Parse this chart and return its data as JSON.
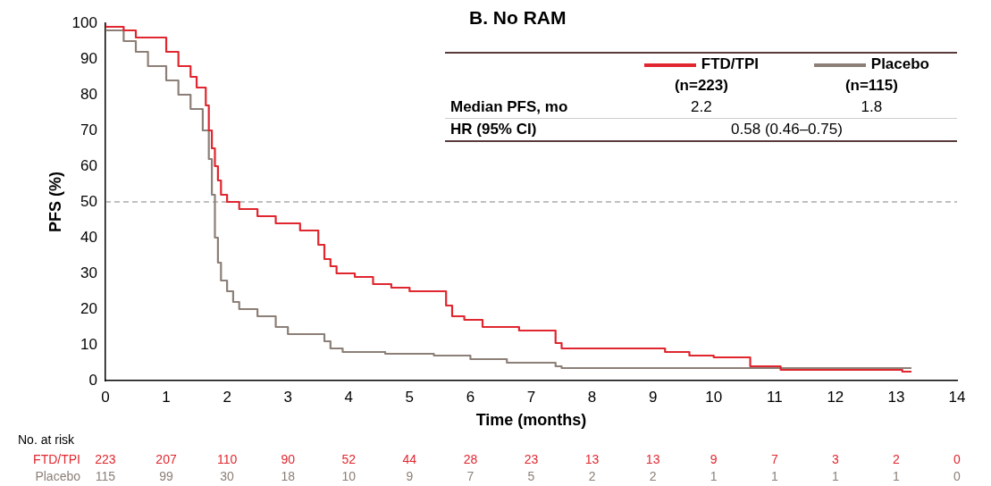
{
  "chart_data": {
    "type": "step",
    "title": "B. No RAM",
    "xlabel": "Time (months)",
    "ylabel": "PFS (%)",
    "xlim": [
      0,
      14
    ],
    "xticks": [
      0,
      1,
      2,
      3,
      4,
      5,
      6,
      7,
      8,
      9,
      10,
      11,
      12,
      13,
      14
    ],
    "ylim": [
      0,
      100
    ],
    "yticks": [
      0,
      10,
      20,
      30,
      40,
      50,
      60,
      70,
      80,
      90,
      100
    ],
    "grid": false,
    "legend": "top right",
    "marker": "none",
    "line_style": "solid",
    "ref_lines": [
      {
        "axis": "y",
        "value": 50,
        "color": "#808080",
        "line_style": "dashed"
      }
    ],
    "series": [
      {
        "name": "FTD/TPI",
        "color": "#e0262e",
        "x": [
          0,
          0.3,
          0.5,
          1,
          1.2,
          1.4,
          1.5,
          1.65,
          1.7,
          1.75,
          1.8,
          1.85,
          1.9,
          2.0,
          2.2,
          2.5,
          2.8,
          3.2,
          3.5,
          3.6,
          3.7,
          3.8,
          4.1,
          4.4,
          4.7,
          5.0,
          5.6,
          5.7,
          5.9,
          6.2,
          6.8,
          7.4,
          7.5,
          9.2,
          9.6,
          10.0,
          10.6,
          11.1,
          13.1,
          13.25
        ],
        "values": [
          100,
          99,
          98,
          96,
          92,
          88,
          85,
          82,
          77,
          70,
          65,
          60,
          56,
          52,
          50,
          48,
          46,
          44,
          42,
          38,
          34,
          32,
          30,
          29,
          27,
          26,
          25,
          21,
          18,
          17,
          15,
          14,
          10.5,
          9,
          8,
          7,
          6.5,
          4,
          3,
          2.5
        ]
      },
      {
        "name": "Placebo",
        "color": "#8c7f77",
        "x": [
          0,
          0.3,
          0.5,
          0.7,
          1,
          1.2,
          1.4,
          1.6,
          1.7,
          1.75,
          1.8,
          1.85,
          1.9,
          2.0,
          2.1,
          2.2,
          2.5,
          2.8,
          3.0,
          3.6,
          3.7,
          3.9,
          4.6,
          5.4,
          6.0,
          6.6,
          7.4,
          7.5,
          7.7,
          13.25
        ],
        "values": [
          100,
          98,
          95,
          92,
          88,
          84,
          80,
          76,
          70,
          62,
          52,
          40,
          33,
          28,
          25,
          22,
          20,
          18,
          15,
          13,
          11,
          9,
          8,
          7.5,
          7,
          6,
          5,
          4,
          3.5,
          3.5
        ]
      }
    ],
    "annotations": [
      "(n=223)",
      "(n=115)",
      "Median PFS, mo",
      "2.2",
      "1.8",
      "HR (95% CI)",
      "0.58 (0.46–0.75)",
      "No. at risk",
      "223 207 110 90 52 44 28 23 13 13 9 7 3 2 0",
      "115 99 30 18 10 9 7 5 2 2 1 1 1 1 0"
    ]
  }
}
